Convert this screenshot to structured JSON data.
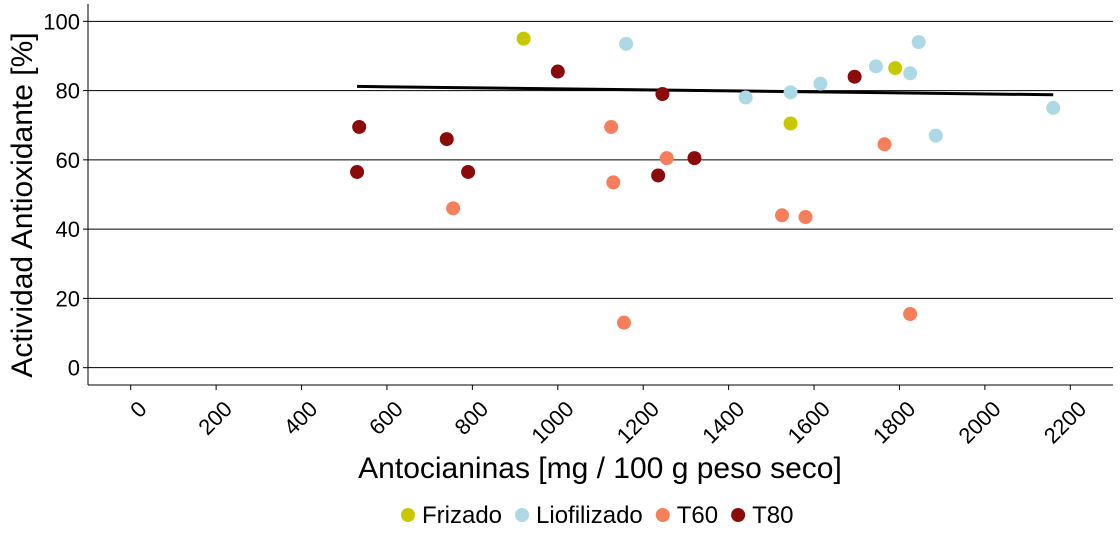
{
  "chart_data": {
    "type": "scatter",
    "title": "",
    "xlabel": "Antocianinas [mg / 100 g peso seco]",
    "ylabel": "Actividad Antioxidante [%]",
    "xlim": [
      -100,
      2300
    ],
    "ylim": [
      -5,
      105
    ],
    "x_ticks": [
      0,
      200,
      400,
      600,
      800,
      1000,
      1200,
      1400,
      1600,
      1800,
      2000,
      2200
    ],
    "x_tick_labels": [
      "0",
      "200",
      "400",
      "600",
      "800",
      "1000",
      "1200",
      "1400",
      "1600",
      "1800",
      "2000",
      "2200"
    ],
    "y_ticks": [
      0,
      20,
      40,
      60,
      80,
      100
    ],
    "y_tick_labels": [
      "0",
      "20",
      "40",
      "60",
      "80",
      "100"
    ],
    "grid": "horizontal",
    "legend_position": "bottom",
    "series": [
      {
        "name": "Frizado",
        "color": "#c8c800",
        "points": [
          [
            920,
            95
          ],
          [
            1545,
            70.5
          ],
          [
            1790,
            86.5
          ]
        ]
      },
      {
        "name": "Liofilizado",
        "color": "#add8e6",
        "points": [
          [
            1160,
            93.5
          ],
          [
            1440,
            78
          ],
          [
            1545,
            79.5
          ],
          [
            1615,
            82
          ],
          [
            1745,
            87
          ],
          [
            1825,
            85
          ],
          [
            1845,
            94
          ],
          [
            1885,
            67
          ],
          [
            2160,
            75
          ]
        ]
      },
      {
        "name": "T60",
        "color": "#f47f5a",
        "points": [
          [
            755,
            46
          ],
          [
            1125,
            69.5
          ],
          [
            1130,
            53.5
          ],
          [
            1155,
            13
          ],
          [
            1255,
            60.5
          ],
          [
            1525,
            44
          ],
          [
            1580,
            43.5
          ],
          [
            1765,
            64.5
          ],
          [
            1825,
            15.5
          ]
        ]
      },
      {
        "name": "T80",
        "color": "#8b0a0a",
        "points": [
          [
            530,
            56.5
          ],
          [
            535,
            69.5
          ],
          [
            740,
            66
          ],
          [
            790,
            56.5
          ],
          [
            1000,
            85.5
          ],
          [
            1235,
            55.5
          ],
          [
            1245,
            79
          ],
          [
            1320,
            60.5
          ],
          [
            1695,
            84
          ]
        ]
      }
    ],
    "trend_line": {
      "color": "#000000",
      "points": [
        [
          530,
          81.2
        ],
        [
          2160,
          78.8
        ]
      ]
    }
  }
}
